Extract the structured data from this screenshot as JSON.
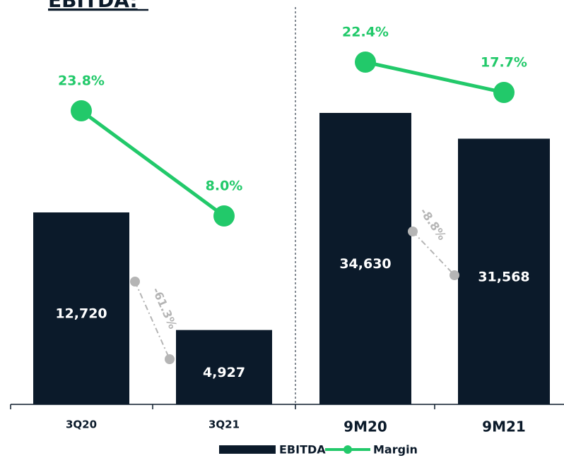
{
  "chart_data": {
    "type": "bar",
    "title": "EBITDA:",
    "series": [
      {
        "name": "EBITDA",
        "color": "#0b1a2a"
      },
      {
        "name": "Margin",
        "color": "#22c96a",
        "type": "line"
      }
    ],
    "panels": [
      {
        "categories": [
          "3Q20",
          "3Q21"
        ],
        "bars": {
          "values": [
            12720,
            4927
          ],
          "value_labels": [
            "12,720",
            "4,927"
          ]
        },
        "margin": {
          "values": [
            23.8,
            8.0
          ],
          "value_labels": [
            "23.8%",
            "8.0%"
          ]
        },
        "change": {
          "value": -61.3,
          "label": "-61.3%"
        }
      },
      {
        "categories": [
          "9M20",
          "9M21"
        ],
        "bars": {
          "values": [
            34630,
            31568
          ],
          "value_labels": [
            "34,630",
            "31,568"
          ]
        },
        "margin": {
          "values": [
            22.4,
            17.7
          ],
          "value_labels": [
            "22.4%",
            "17.7%"
          ]
        },
        "change": {
          "value": -8.8,
          "label": "-8.8%"
        }
      }
    ]
  }
}
